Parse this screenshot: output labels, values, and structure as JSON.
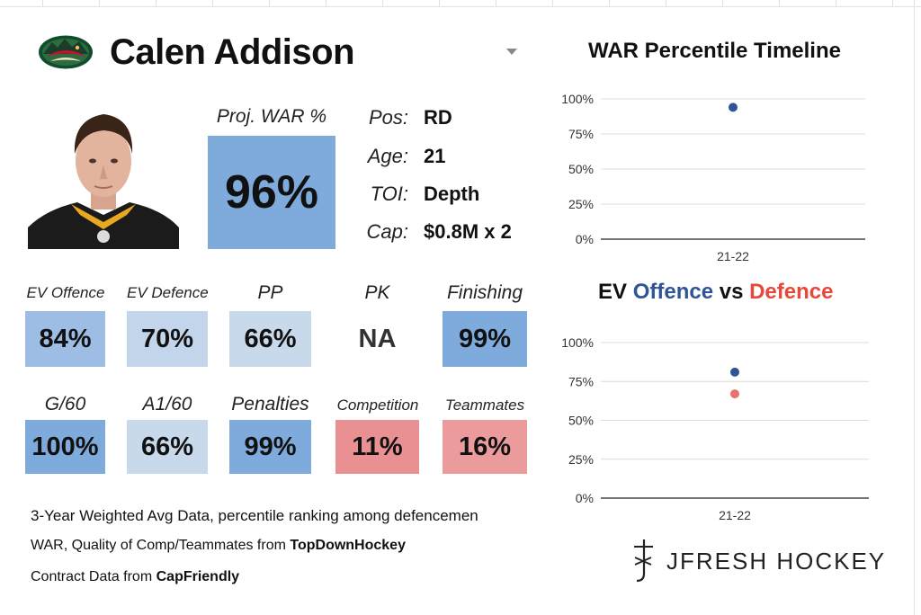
{
  "player": {
    "name": "Calen Addison",
    "team_logo": "minnesota-wild-logo"
  },
  "proj_war": {
    "label": "Proj. WAR %",
    "value": "96%",
    "color": "#7eaadc"
  },
  "info": [
    {
      "label": "Pos:",
      "value": "RD"
    },
    {
      "label": "Age:",
      "value": "21"
    },
    {
      "label": "TOI:",
      "value": "Depth"
    },
    {
      "label": "Cap:",
      "value": "$0.8M x 2"
    }
  ],
  "stats_row1": [
    {
      "label": "EV Offence",
      "value": "84%",
      "color": "#9dbde4"
    },
    {
      "label": "EV Defence",
      "value": "70%",
      "color": "#c3d5ea"
    },
    {
      "label": "PP",
      "value": "66%",
      "color": "#c9d9ec"
    },
    {
      "label": "PK",
      "value": "NA",
      "color": "#ffffff"
    },
    {
      "label": "Finishing",
      "value": "99%",
      "color": "#7eaadc"
    }
  ],
  "stats_row2": [
    {
      "label": "G/60",
      "value": "100%",
      "color": "#7eaadc"
    },
    {
      "label": "A1/60",
      "value": "66%",
      "color": "#c9d9ec"
    },
    {
      "label": "Penalties",
      "value": "99%",
      "color": "#7eaadc"
    },
    {
      "label": "Competition",
      "value": "11%",
      "color": "#e99192"
    },
    {
      "label": "Teammates",
      "value": "16%",
      "color": "#ec9b9c"
    }
  ],
  "footer": {
    "line1": "3-Year Weighted Avg Data, percentile ranking among defencemen",
    "line2_prefix": "WAR, Quality of Comp/Teammates from ",
    "line2_source": "TopDownHockey",
    "line3_prefix": "Contract Data from ",
    "line3_source": "CapFriendly"
  },
  "brand": {
    "text": "JFRESH HOCKEY",
    "logo": "jfresh-logo"
  },
  "chart_data": [
    {
      "type": "scatter",
      "title": "WAR Percentile Timeline",
      "categories": [
        "21-22"
      ],
      "series": [
        {
          "values": [
            94
          ],
          "color": "#2f5597"
        }
      ],
      "ylim": [
        0,
        100
      ],
      "yticks": [
        "0%",
        "25%",
        "50%",
        "75%",
        "100%"
      ],
      "grid": true
    },
    {
      "type": "scatter",
      "title_parts": [
        {
          "text": "EV ",
          "color": "#111111"
        },
        {
          "text": "Offence",
          "color": "#2f5597"
        },
        {
          "text": " vs ",
          "color": "#111111"
        },
        {
          "text": "Defence",
          "color": "#e8483b"
        }
      ],
      "categories": [
        "21-22"
      ],
      "series": [
        {
          "values": [
            81
          ],
          "color": "#2f5597"
        },
        {
          "values": [
            67
          ],
          "color": "#e9736a"
        }
      ],
      "ylim": [
        0,
        100
      ],
      "yticks": [
        "0%",
        "25%",
        "50%",
        "75%",
        "100%"
      ],
      "grid": true
    }
  ]
}
